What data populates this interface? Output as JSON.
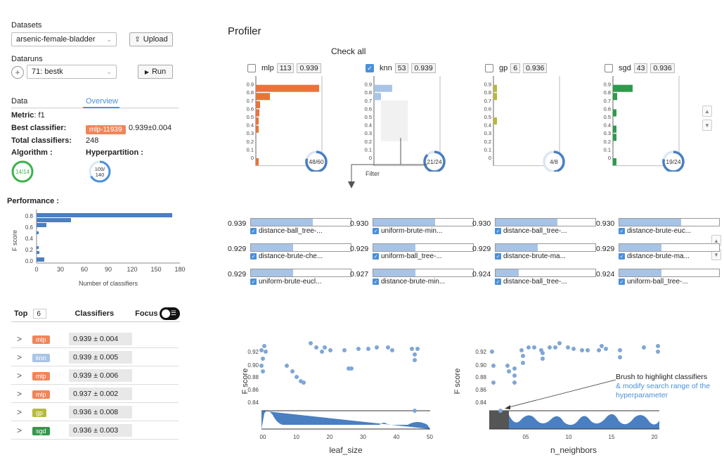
{
  "sidebar": {
    "datasets_label": "Datasets",
    "dataset_value": "arsenic-female-bladder",
    "upload_label": "Upload",
    "dataruns_label": "Dataruns",
    "datarun_value": "71: bestk",
    "run_label": "Run",
    "tabs": [
      "Data",
      "Overview"
    ],
    "metric_label": "Metric",
    "metric_value": ": f1",
    "best_label": "Best classifier:",
    "best_tag": "mlp-11939",
    "best_score": "0.939±0.004",
    "total_label": "Total classifiers:",
    "total_value": "248",
    "algorithm_label": "Algorithm",
    "algorithm_ring": "14/14",
    "hyper_label": "Hyperpartition",
    "hyper_ring_top": "109/",
    "hyper_ring_bottom": "140",
    "performance_label": "Performance :",
    "perf_ylabel": "F score",
    "perf_xlabel": "Number of classifiers",
    "perf_yticks": [
      "0.8",
      "0.6",
      "0.4",
      "0.2",
      "0.0"
    ],
    "perf_xticks": [
      "0",
      "30",
      "60",
      "90",
      "120",
      "150",
      "180"
    ],
    "top_label": "Top",
    "top_value": "6",
    "classifiers_label": "Classifiers",
    "focus_label": "Focus",
    "ranking": [
      {
        "tag": "mlp",
        "score": "0.939 ± 0.004",
        "color": "#f0855a"
      },
      {
        "tag": "knn",
        "score": "0.939 ± 0.005",
        "color": "#a9c4e6"
      },
      {
        "tag": "mlp",
        "score": "0.939 ± 0.006",
        "color": "#f0855a"
      },
      {
        "tag": "mlp",
        "score": "0.937 ± 0.002",
        "color": "#f0855a"
      },
      {
        "tag": "gp",
        "score": "0.936 ± 0.008",
        "color": "#b7b93a"
      },
      {
        "tag": "sgd",
        "score": "0.936 ± 0.003",
        "color": "#2e9b4a"
      }
    ]
  },
  "profiler": {
    "title": "Profiler",
    "check_all": "Check all",
    "filter_label": "Filter",
    "panels": [
      {
        "name": "mlp",
        "count": "113",
        "score": "0.939",
        "ring": "48/60",
        "checked": false,
        "color": "#e8743b"
      },
      {
        "name": "knn",
        "count": "53",
        "score": "0.939",
        "ring": "21/24",
        "checked": true,
        "color": "#a9c4e6"
      },
      {
        "name": "gp",
        "count": "6",
        "score": "0.936",
        "ring": "4/8",
        "checked": false,
        "color": "#b7b93a"
      },
      {
        "name": "sgd",
        "count": "43",
        "score": "0.936",
        "ring": "19/24",
        "checked": false,
        "color": "#2e9b4a"
      }
    ],
    "hist_yticks": [
      "0.9",
      "0.8",
      "0.7",
      "0.6",
      "0.5",
      "0.4",
      "0.3",
      "0.2",
      "0.1",
      "0"
    ],
    "candidates": [
      [
        {
          "score": "0.939",
          "name": "distance-ball_tree-...",
          "fill": 0.62
        },
        {
          "score": "0.929",
          "name": "distance-brute-che...",
          "fill": 0.42
        },
        {
          "score": "0.929",
          "name": "uniform-brute-eucl...",
          "fill": 0.42
        }
      ],
      [
        {
          "score": "0.930",
          "name": "uniform-brute-min...",
          "fill": 0.62
        },
        {
          "score": "0.929",
          "name": "uniform-ball_tree-...",
          "fill": 0.42
        },
        {
          "score": "0.927",
          "name": "distance-brute-min...",
          "fill": 0.42
        }
      ],
      [
        {
          "score": "0.930",
          "name": "distance-ball_tree-...",
          "fill": 0.62
        },
        {
          "score": "0.929",
          "name": "distance-brute-ma...",
          "fill": 0.42
        },
        {
          "score": "0.924",
          "name": "distance-ball_tree-...",
          "fill": 0.23
        }
      ],
      [
        {
          "score": "0.930",
          "name": "distance-brute-euc...",
          "fill": 0.62
        },
        {
          "score": "0.929",
          "name": "distance-brute-ma...",
          "fill": 0.42
        },
        {
          "score": "0.924",
          "name": "uniform-ball_tree-...",
          "fill": 0.42
        }
      ]
    ],
    "scatter_ylabel": "F score",
    "scatter_yticks": [
      "0.92",
      "0.90",
      "0.88",
      "0.86",
      "0.84"
    ],
    "scatter_left_xlabel": "leaf_size",
    "scatter_left_xticks": [
      "00",
      "10",
      "20",
      "30",
      "40",
      "50"
    ],
    "scatter_right_xlabel": "n_neighbors",
    "scatter_right_xticks": [
      "05",
      "10",
      "15",
      "20"
    ],
    "annotation_line1": "Brush to highlight classifiers",
    "annotation_line2": "& modify search range of the",
    "annotation_line3": "hyperparameter"
  }
}
